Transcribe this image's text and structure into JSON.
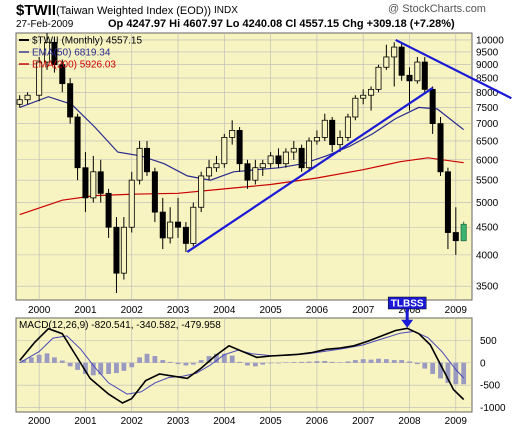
{
  "header": {
    "symbol": "$TWII",
    "name": "(Taiwan Weighted Index (EOD))",
    "exchange": "INDX",
    "brand": "@ StockCharts.com",
    "date": "27-Feb-2009",
    "quote_line": "Op 4247.97  Hi 4607.97  Lo 4240.08  Cl 4557.15  Chg +309.18 (+7.28%)"
  },
  "colors": {
    "panel_bg": "#f7f4c1",
    "candle": "#000000",
    "ema50": "#2b2b8f",
    "ema200": "#cc0000",
    "trendline": "#1a1ad6",
    "macd": "#000000",
    "signal": "#4a4ab8",
    "histogram": "#9a9ac0",
    "last_candle": "#3cb371"
  },
  "chart_data": [
    {
      "type": "candlestick",
      "legend_position": "top-left",
      "grid": true,
      "x_tick_labels": [
        "2000",
        "2001",
        "2002",
        "2003",
        "2004",
        "2005",
        "2006",
        "2007",
        "2008",
        "2009"
      ],
      "y_tick_labels": [
        "3500",
        "4000",
        "4500",
        "5000",
        "5500",
        "6000",
        "6500",
        "7000",
        "7500",
        "8000",
        "8500",
        "9000",
        "9500",
        "10000"
      ],
      "y_scale": "log",
      "ylim": [
        3300,
        10300
      ],
      "legend": [
        {
          "key": "price",
          "text": "$TWII (Monthly) 4557.15"
        },
        {
          "key": "ema50",
          "text": "EMA(50) 6819.34"
        },
        {
          "key": "ema200",
          "text": "EMA(200) 5926.03"
        }
      ],
      "candles": [
        {
          "t": 1999.58,
          "o": 7600,
          "h": 7900,
          "l": 7500,
          "c": 7750
        },
        {
          "t": 1999.75,
          "o": 7750,
          "h": 8000,
          "l": 7600,
          "c": 7900
        },
        {
          "t": 2000.0,
          "o": 7900,
          "h": 9300,
          "l": 7700,
          "c": 9100
        },
        {
          "t": 2000.17,
          "o": 9100,
          "h": 10300,
          "l": 8800,
          "c": 9900
        },
        {
          "t": 2000.33,
          "o": 9900,
          "h": 10100,
          "l": 8700,
          "c": 9000
        },
        {
          "t": 2000.5,
          "o": 9000,
          "h": 9200,
          "l": 8000,
          "c": 8300
        },
        {
          "t": 2000.67,
          "o": 8300,
          "h": 8500,
          "l": 7000,
          "c": 7200
        },
        {
          "t": 2000.83,
          "o": 7200,
          "h": 7300,
          "l": 5500,
          "c": 5800
        },
        {
          "t": 2001.0,
          "o": 5800,
          "h": 6200,
          "l": 4800,
          "c": 5100
        },
        {
          "t": 2001.17,
          "o": 5100,
          "h": 6100,
          "l": 5000,
          "c": 5700
        },
        {
          "t": 2001.33,
          "o": 5700,
          "h": 6000,
          "l": 5000,
          "c": 5200
        },
        {
          "t": 2001.5,
          "o": 5200,
          "h": 5300,
          "l": 4300,
          "c": 4500
        },
        {
          "t": 2001.67,
          "o": 4500,
          "h": 4700,
          "l": 3400,
          "c": 3700
        },
        {
          "t": 2001.83,
          "o": 3700,
          "h": 4700,
          "l": 3600,
          "c": 4500
        },
        {
          "t": 2002.0,
          "o": 4500,
          "h": 5700,
          "l": 4400,
          "c": 5500
        },
        {
          "t": 2002.17,
          "o": 5500,
          "h": 6500,
          "l": 5400,
          "c": 6300
        },
        {
          "t": 2002.33,
          "o": 6300,
          "h": 6500,
          "l": 5600,
          "c": 5700
        },
        {
          "t": 2002.5,
          "o": 5700,
          "h": 5800,
          "l": 4600,
          "c": 4800
        },
        {
          "t": 2002.67,
          "o": 4800,
          "h": 5100,
          "l": 4100,
          "c": 4300
        },
        {
          "t": 2002.83,
          "o": 4300,
          "h": 4900,
          "l": 4200,
          "c": 4600
        },
        {
          "t": 2003.0,
          "o": 4600,
          "h": 5100,
          "l": 4300,
          "c": 4500
        },
        {
          "t": 2003.17,
          "o": 4500,
          "h": 4600,
          "l": 4050,
          "c": 4200
        },
        {
          "t": 2003.33,
          "o": 4200,
          "h": 5000,
          "l": 4150,
          "c": 4900
        },
        {
          "t": 2003.5,
          "o": 4900,
          "h": 5700,
          "l": 4800,
          "c": 5600
        },
        {
          "t": 2003.67,
          "o": 5600,
          "h": 6000,
          "l": 5500,
          "c": 5800
        },
        {
          "t": 2003.83,
          "o": 5800,
          "h": 6100,
          "l": 5700,
          "c": 5900
        },
        {
          "t": 2004.0,
          "o": 5900,
          "h": 6700,
          "l": 5800,
          "c": 6600
        },
        {
          "t": 2004.17,
          "o": 6600,
          "h": 7100,
          "l": 6400,
          "c": 6800
        },
        {
          "t": 2004.33,
          "o": 6800,
          "h": 6900,
          "l": 5700,
          "c": 5900
        },
        {
          "t": 2004.5,
          "o": 5900,
          "h": 6000,
          "l": 5300,
          "c": 5500
        },
        {
          "t": 2004.67,
          "o": 5500,
          "h": 6000,
          "l": 5400,
          "c": 5800
        },
        {
          "t": 2004.83,
          "o": 5800,
          "h": 6000,
          "l": 5600,
          "c": 5900
        },
        {
          "t": 2005.0,
          "o": 5900,
          "h": 6200,
          "l": 5800,
          "c": 6100
        },
        {
          "t": 2005.17,
          "o": 6100,
          "h": 6300,
          "l": 5800,
          "c": 5900
        },
        {
          "t": 2005.33,
          "o": 5900,
          "h": 6300,
          "l": 5800,
          "c": 6200
        },
        {
          "t": 2005.5,
          "o": 6200,
          "h": 6500,
          "l": 6000,
          "c": 6300
        },
        {
          "t": 2005.67,
          "o": 6300,
          "h": 6400,
          "l": 5700,
          "c": 5800
        },
        {
          "t": 2005.83,
          "o": 5800,
          "h": 6600,
          "l": 5700,
          "c": 6500
        },
        {
          "t": 2006.0,
          "o": 6500,
          "h": 6800,
          "l": 6400,
          "c": 6600
        },
        {
          "t": 2006.17,
          "o": 6600,
          "h": 7300,
          "l": 6500,
          "c": 7100
        },
        {
          "t": 2006.33,
          "o": 7100,
          "h": 7200,
          "l": 6200,
          "c": 6400
        },
        {
          "t": 2006.5,
          "o": 6400,
          "h": 6800,
          "l": 6200,
          "c": 6600
        },
        {
          "t": 2006.67,
          "o": 6600,
          "h": 7300,
          "l": 6500,
          "c": 7200
        },
        {
          "t": 2006.83,
          "o": 7200,
          "h": 7900,
          "l": 7100,
          "c": 7800
        },
        {
          "t": 2007.0,
          "o": 7800,
          "h": 8100,
          "l": 7600,
          "c": 7900
        },
        {
          "t": 2007.17,
          "o": 7900,
          "h": 8200,
          "l": 7400,
          "c": 8100
        },
        {
          "t": 2007.33,
          "o": 8100,
          "h": 9000,
          "l": 8000,
          "c": 8900
        },
        {
          "t": 2007.5,
          "o": 8900,
          "h": 9800,
          "l": 8800,
          "c": 9300
        },
        {
          "t": 2007.67,
          "o": 9300,
          "h": 9900,
          "l": 8200,
          "c": 9700
        },
        {
          "t": 2007.83,
          "o": 9700,
          "h": 9900,
          "l": 8400,
          "c": 8600
        },
        {
          "t": 2008.0,
          "o": 8600,
          "h": 8900,
          "l": 7400,
          "c": 8400
        },
        {
          "t": 2008.17,
          "o": 8400,
          "h": 9300,
          "l": 8300,
          "c": 9100
        },
        {
          "t": 2008.33,
          "o": 9100,
          "h": 9300,
          "l": 8000,
          "c": 8100
        },
        {
          "t": 2008.5,
          "o": 8100,
          "h": 8200,
          "l": 6700,
          "c": 7000
        },
        {
          "t": 2008.67,
          "o": 7000,
          "h": 7200,
          "l": 5600,
          "c": 5700
        },
        {
          "t": 2008.83,
          "o": 5700,
          "h": 5800,
          "l": 4100,
          "c": 4400
        },
        {
          "t": 2009.0,
          "o": 4400,
          "h": 4900,
          "l": 4000,
          "c": 4250
        },
        {
          "t": 2009.17,
          "o": 4248,
          "h": 4608,
          "l": 4240,
          "c": 4557
        }
      ],
      "ema50": [
        [
          1999.58,
          7500
        ],
        [
          2000.2,
          7850
        ],
        [
          2000.7,
          7600
        ],
        [
          2001.2,
          6900
        ],
        [
          2001.7,
          6200
        ],
        [
          2002.2,
          6100
        ],
        [
          2002.7,
          5900
        ],
        [
          2003.2,
          5600
        ],
        [
          2003.7,
          5500
        ],
        [
          2004.2,
          5700
        ],
        [
          2004.7,
          5750
        ],
        [
          2005.2,
          5800
        ],
        [
          2005.7,
          5900
        ],
        [
          2006.2,
          6100
        ],
        [
          2006.7,
          6350
        ],
        [
          2007.2,
          6700
        ],
        [
          2007.7,
          7150
        ],
        [
          2008.2,
          7500
        ],
        [
          2008.6,
          7450
        ],
        [
          2009.17,
          6819
        ]
      ],
      "ema200": [
        [
          1999.58,
          4750
        ],
        [
          2000.5,
          5050
        ],
        [
          2001.2,
          5150
        ],
        [
          2002.0,
          5180
        ],
        [
          2003.0,
          5200
        ],
        [
          2004.0,
          5300
        ],
        [
          2005.0,
          5400
        ],
        [
          2006.0,
          5550
        ],
        [
          2007.0,
          5750
        ],
        [
          2007.8,
          5950
        ],
        [
          2008.4,
          6050
        ],
        [
          2009.17,
          5926
        ]
      ],
      "trendlines": [
        {
          "from": [
            2003.2,
            4050
          ],
          "to": [
            2008.5,
            8150
          ]
        },
        {
          "from": [
            2007.7,
            10000
          ],
          "to": [
            2010.2,
            7800
          ]
        }
      ]
    },
    {
      "type": "line",
      "legend_position": "top-left",
      "grid": true,
      "legend": [
        {
          "key": "macd",
          "text": "MACD(12,26,9) -820.541, -340.582, -479.958"
        }
      ],
      "x_tick_labels": [
        "2000",
        "2001",
        "2002",
        "2003",
        "2004",
        "2005",
        "2006",
        "2007",
        "2008",
        "2009"
      ],
      "y_tick_labels": [
        "500",
        "0",
        "-500",
        "-1000"
      ],
      "ylim": [
        -1100,
        1000
      ],
      "annotation": {
        "text": "TLBSS",
        "t": 2007.95,
        "v": 760
      },
      "series": [
        {
          "key": "macd",
          "points": [
            [
              1999.58,
              50
            ],
            [
              1999.9,
              450
            ],
            [
              2000.2,
              760
            ],
            [
              2000.5,
              650
            ],
            [
              2000.8,
              150
            ],
            [
              2001.1,
              -350
            ],
            [
              2001.5,
              -700
            ],
            [
              2001.8,
              -900
            ],
            [
              2002.0,
              -800
            ],
            [
              2002.3,
              -400
            ],
            [
              2002.6,
              -250
            ],
            [
              2002.9,
              -300
            ],
            [
              2003.2,
              -350
            ],
            [
              2003.5,
              -120
            ],
            [
              2003.8,
              150
            ],
            [
              2004.1,
              380
            ],
            [
              2004.4,
              250
            ],
            [
              2004.7,
              120
            ],
            [
              2005.0,
              150
            ],
            [
              2005.3,
              170
            ],
            [
              2005.6,
              190
            ],
            [
              2005.9,
              230
            ],
            [
              2006.2,
              300
            ],
            [
              2006.5,
              330
            ],
            [
              2006.8,
              380
            ],
            [
              2007.1,
              480
            ],
            [
              2007.4,
              600
            ],
            [
              2007.7,
              720
            ],
            [
              2007.95,
              770
            ],
            [
              2008.2,
              650
            ],
            [
              2008.45,
              400
            ],
            [
              2008.7,
              -100
            ],
            [
              2008.95,
              -600
            ],
            [
              2009.17,
              -820
            ]
          ]
        },
        {
          "key": "signal",
          "points": [
            [
              1999.58,
              0
            ],
            [
              2000.0,
              250
            ],
            [
              2000.3,
              550
            ],
            [
              2000.6,
              600
            ],
            [
              2000.9,
              300
            ],
            [
              2001.2,
              -100
            ],
            [
              2001.5,
              -450
            ],
            [
              2001.9,
              -700
            ],
            [
              2002.2,
              -650
            ],
            [
              2002.5,
              -450
            ],
            [
              2002.8,
              -330
            ],
            [
              2003.1,
              -300
            ],
            [
              2003.4,
              -230
            ],
            [
              2003.7,
              -50
            ],
            [
              2004.0,
              180
            ],
            [
              2004.3,
              280
            ],
            [
              2004.6,
              200
            ],
            [
              2005.0,
              160
            ],
            [
              2005.4,
              170
            ],
            [
              2005.8,
              200
            ],
            [
              2006.2,
              260
            ],
            [
              2006.6,
              320
            ],
            [
              2007.0,
              400
            ],
            [
              2007.4,
              530
            ],
            [
              2007.8,
              660
            ],
            [
              2008.1,
              700
            ],
            [
              2008.4,
              560
            ],
            [
              2008.7,
              250
            ],
            [
              2009.0,
              -150
            ],
            [
              2009.17,
              -340
            ]
          ]
        }
      ],
      "histogram": [
        [
          1999.67,
          60
        ],
        [
          1999.83,
          120
        ],
        [
          2000.0,
          180
        ],
        [
          2000.17,
          210
        ],
        [
          2000.33,
          120
        ],
        [
          2000.5,
          50
        ],
        [
          2000.67,
          -80
        ],
        [
          2000.83,
          -160
        ],
        [
          2001.0,
          -250
        ],
        [
          2001.17,
          -280
        ],
        [
          2001.33,
          -260
        ],
        [
          2001.5,
          -250
        ],
        [
          2001.67,
          -230
        ],
        [
          2001.83,
          -180
        ],
        [
          2002.0,
          -100
        ],
        [
          2002.17,
          120
        ],
        [
          2002.33,
          200
        ],
        [
          2002.5,
          150
        ],
        [
          2002.67,
          60
        ],
        [
          2002.83,
          20
        ],
        [
          2003.0,
          -30
        ],
        [
          2003.17,
          -60
        ],
        [
          2003.33,
          -40
        ],
        [
          2003.5,
          60
        ],
        [
          2003.67,
          150
        ],
        [
          2003.83,
          200
        ],
        [
          2004.0,
          200
        ],
        [
          2004.17,
          160
        ],
        [
          2004.33,
          20
        ],
        [
          2004.5,
          -60
        ],
        [
          2004.67,
          -80
        ],
        [
          2004.83,
          -40
        ],
        [
          2005.0,
          -10
        ],
        [
          2005.17,
          0
        ],
        [
          2005.33,
          10
        ],
        [
          2005.5,
          15
        ],
        [
          2005.67,
          20
        ],
        [
          2005.83,
          25
        ],
        [
          2006.0,
          35
        ],
        [
          2006.17,
          40
        ],
        [
          2006.33,
          20
        ],
        [
          2006.5,
          10
        ],
        [
          2006.67,
          30
        ],
        [
          2006.83,
          60
        ],
        [
          2007.0,
          80
        ],
        [
          2007.17,
          70
        ],
        [
          2007.33,
          90
        ],
        [
          2007.5,
          80
        ],
        [
          2007.67,
          60
        ],
        [
          2007.83,
          60
        ],
        [
          2008.0,
          30
        ],
        [
          2008.17,
          -30
        ],
        [
          2008.33,
          -130
        ],
        [
          2008.5,
          -250
        ],
        [
          2008.67,
          -350
        ],
        [
          2008.83,
          -450
        ],
        [
          2009.0,
          -480
        ],
        [
          2009.17,
          -480
        ]
      ]
    }
  ]
}
